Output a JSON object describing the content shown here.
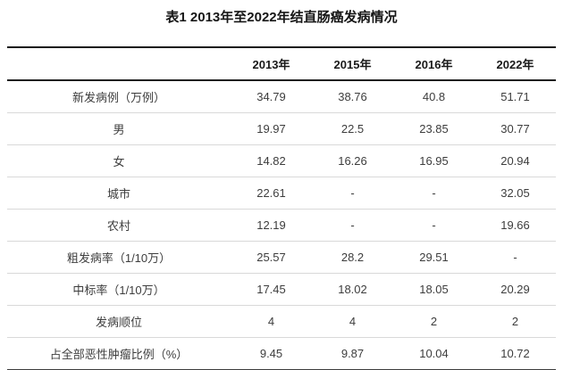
{
  "page": {
    "title": "表1 2013年至2022年结直肠癌发病情况"
  },
  "table": {
    "corner_label": "",
    "columns": [
      "2013年",
      "2015年",
      "2016年",
      "2022年"
    ],
    "rows": [
      {
        "label": "新发病例（万例）",
        "values": [
          "34.79",
          "38.76",
          "40.8",
          "51.71"
        ]
      },
      {
        "label": "男",
        "values": [
          "19.97",
          "22.5",
          "23.85",
          "30.77"
        ]
      },
      {
        "label": "女",
        "values": [
          "14.82",
          "16.26",
          "16.95",
          "20.94"
        ]
      },
      {
        "label": "城市",
        "values": [
          "22.61",
          "-",
          "-",
          "32.05"
        ]
      },
      {
        "label": "农村",
        "values": [
          "12.19",
          "-",
          "-",
          "19.66"
        ]
      },
      {
        "label": "粗发病率（1/10万）",
        "values": [
          "25.57",
          "28.2",
          "29.51",
          "-"
        ]
      },
      {
        "label": "中标率（1/10万）",
        "values": [
          "17.45",
          "18.02",
          "18.05",
          "20.29"
        ]
      },
      {
        "label": "发病顺位",
        "values": [
          "4",
          "4",
          "2",
          "2"
        ]
      },
      {
        "label": "占全部恶性肿瘤比例（%）",
        "values": [
          "9.45",
          "9.87",
          "10.04",
          "10.72"
        ]
      }
    ]
  },
  "chart_data": {
    "type": "table",
    "title": "表1 2013年至2022年结直肠癌发病情况",
    "columns": [
      "",
      "2013年",
      "2015年",
      "2016年",
      "2022年"
    ],
    "rows": [
      [
        "新发病例（万例）",
        "34.79",
        "38.76",
        "40.8",
        "51.71"
      ],
      [
        "男",
        "19.97",
        "22.5",
        "23.85",
        "30.77"
      ],
      [
        "女",
        "14.82",
        "16.26",
        "16.95",
        "20.94"
      ],
      [
        "城市",
        "22.61",
        "-",
        "-",
        "32.05"
      ],
      [
        "农村",
        "12.19",
        "-",
        "-",
        "19.66"
      ],
      [
        "粗发病率（1/10万）",
        "25.57",
        "28.2",
        "29.51",
        "-"
      ],
      [
        "中标率（1/10万）",
        "17.45",
        "18.02",
        "18.05",
        "20.29"
      ],
      [
        "发病顺位",
        "4",
        "4",
        "2",
        "2"
      ],
      [
        "占全部恶性肿瘤比例（%）",
        "9.45",
        "9.87",
        "10.04",
        "10.72"
      ]
    ]
  },
  "colors": {
    "background": "#ffffff",
    "heavy_rule": "#151515",
    "header_rule": "#1f1f1f",
    "light_rule": "#d9d9d9",
    "text": "#3d3d3d",
    "header_text": "#1a1a1a"
  }
}
